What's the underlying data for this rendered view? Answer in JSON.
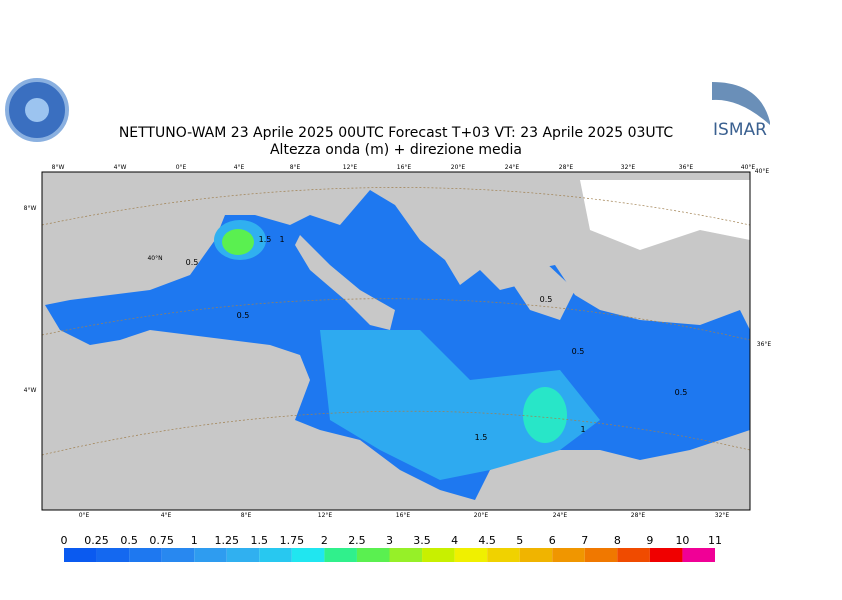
{
  "header": {
    "title": "NETTUNO-WAM  23   Aprile  2025 00UTC Forecast T+03 VT: 23   Aprile  2025 03UTC",
    "subtitle": "Altezza onda (m) + direzione media",
    "logo": "ISMAR"
  },
  "map": {
    "top_labels": [
      "8°W",
      "4°W",
      "0°E",
      "4°E",
      "8°E",
      "12°E",
      "16°E",
      "20°E",
      "24°E",
      "28°E",
      "32°E",
      "36°E",
      "40°E"
    ],
    "bottom_labels": [
      "0°E",
      "4°E",
      "8°E",
      "12°E",
      "16°E",
      "20°E",
      "24°E",
      "28°E",
      "32°E"
    ],
    "left_labels": [
      "8°W",
      "40°N",
      "4°W"
    ],
    "right_labels": [
      "40°E",
      "36°E"
    ],
    "contour_labels": [
      "0.5",
      "1.5",
      "1",
      "0.5",
      "0.5",
      "0.5",
      "0.5",
      "1.5",
      "1"
    ]
  },
  "legend": {
    "labels": [
      "0",
      "0.25",
      "0.5",
      "0.75",
      "1",
      "1.25",
      "1.5",
      "1.75",
      "2",
      "2.5",
      "3",
      "3.5",
      "4",
      "4.5",
      "5",
      "6",
      "7",
      "8",
      "9",
      "10",
      "11"
    ],
    "colors": [
      "#0a5af0",
      "#1468f0",
      "#1e78f0",
      "#2888f0",
      "#2e9cf0",
      "#30b0f0",
      "#28c8f0",
      "#20e6f0",
      "#30f08c",
      "#5af050",
      "#96f028",
      "#c8f000",
      "#f0f000",
      "#f0d200",
      "#f0b400",
      "#f09600",
      "#f07800",
      "#f04b00",
      "#f00000",
      "#f00096"
    ]
  }
}
